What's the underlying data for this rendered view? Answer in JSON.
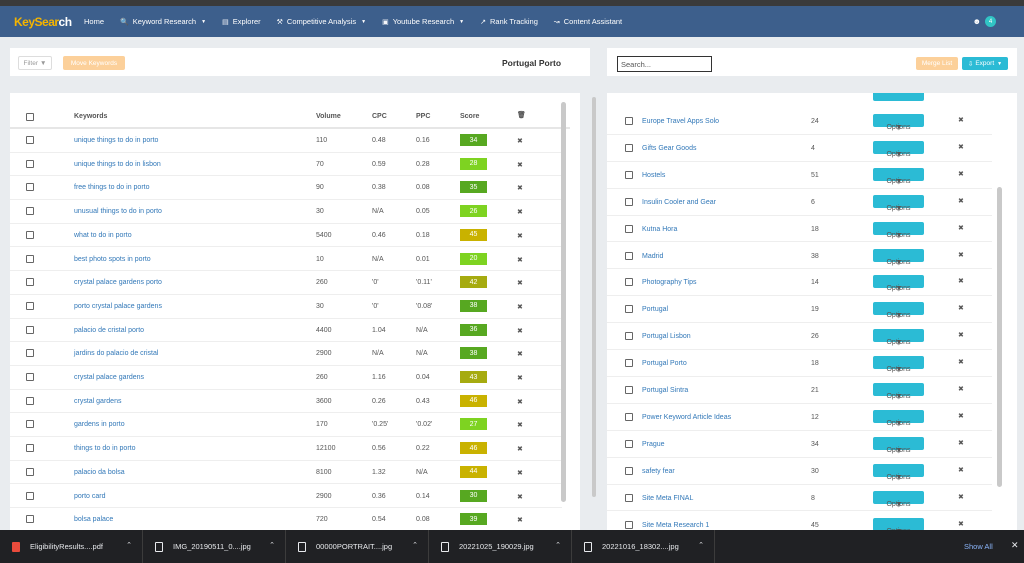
{
  "nav": {
    "logo_a": "KeySear",
    "logo_b": "ch",
    "items": [
      {
        "label": "Home",
        "icon": "",
        "caret": false
      },
      {
        "label": "Keyword Research",
        "icon": "search-icon",
        "caret": true
      },
      {
        "label": "Explorer",
        "icon": "bar-chart-icon",
        "caret": false
      },
      {
        "label": "Competitive Analysis",
        "icon": "wrench-icon",
        "caret": true
      },
      {
        "label": "Youtube Research",
        "icon": "film-icon",
        "caret": true
      },
      {
        "label": "Rank Tracking",
        "icon": "line-chart-icon",
        "caret": false
      },
      {
        "label": "Content Assistant",
        "icon": "area-chart-icon",
        "caret": false
      }
    ],
    "notification_count": "4"
  },
  "left_toolbar": {
    "filter_label": "Filter",
    "move_label": "Move Keywords",
    "list_title": "Portugal Porto"
  },
  "right_toolbar": {
    "search_placeholder": "Search...",
    "merge_label": "Merge List",
    "export_label": "Export"
  },
  "keywords_table": {
    "headers": {
      "keywords": "Keywords",
      "volume": "Volume",
      "cpc": "CPC",
      "ppc": "PPC",
      "score": "Score"
    },
    "rows": [
      {
        "keyword": "unique things to do in porto",
        "volume": "110",
        "cpc": "0.48",
        "ppc": "0.16",
        "score": "34",
        "color": "#57a821"
      },
      {
        "keyword": "unique things to do in lisbon",
        "volume": "70",
        "cpc": "0.59",
        "ppc": "0.28",
        "score": "28",
        "color": "#7ed321"
      },
      {
        "keyword": "free things to do in porto",
        "volume": "90",
        "cpc": "0.38",
        "ppc": "0.08",
        "score": "35",
        "color": "#57a821"
      },
      {
        "keyword": "unusual things to do in porto",
        "volume": "30",
        "cpc": "N/A",
        "ppc": "0.05",
        "score": "26",
        "color": "#7ed321"
      },
      {
        "keyword": "what to do in porto",
        "volume": "5400",
        "cpc": "0.46",
        "ppc": "0.18",
        "score": "45",
        "color": "#c9b200"
      },
      {
        "keyword": "best photo spots in porto",
        "volume": "10",
        "cpc": "N/A",
        "ppc": "0.01",
        "score": "20",
        "color": "#7ed321"
      },
      {
        "keyword": "crystal palace gardens porto",
        "volume": "260",
        "cpc": "'0'",
        "ppc": "'0.11'",
        "score": "42",
        "color": "#a6ab10"
      },
      {
        "keyword": "porto crystal palace gardens",
        "volume": "30",
        "cpc": "'0'",
        "ppc": "'0.08'",
        "score": "38",
        "color": "#57a821"
      },
      {
        "keyword": "palacio de cristal porto",
        "volume": "4400",
        "cpc": "1.04",
        "ppc": "N/A",
        "score": "36",
        "color": "#57a821"
      },
      {
        "keyword": "jardins do palacio de cristal",
        "volume": "2900",
        "cpc": "N/A",
        "ppc": "N/A",
        "score": "38",
        "color": "#57a821"
      },
      {
        "keyword": "crystal palace gardens",
        "volume": "260",
        "cpc": "1.16",
        "ppc": "0.04",
        "score": "43",
        "color": "#a6ab10"
      },
      {
        "keyword": "crystal gardens",
        "volume": "3600",
        "cpc": "0.26",
        "ppc": "0.43",
        "score": "46",
        "color": "#c9b200"
      },
      {
        "keyword": "gardens in porto",
        "volume": "170",
        "cpc": "'0.25'",
        "ppc": "'0.02'",
        "score": "27",
        "color": "#7ed321"
      },
      {
        "keyword": "things to do in porto",
        "volume": "12100",
        "cpc": "0.56",
        "ppc": "0.22",
        "score": "46",
        "color": "#c9b200"
      },
      {
        "keyword": "palacio da bolsa",
        "volume": "8100",
        "cpc": "1.32",
        "ppc": "N/A",
        "score": "44",
        "color": "#c9b200"
      },
      {
        "keyword": "porto card",
        "volume": "2900",
        "cpc": "0.36",
        "ppc": "0.14",
        "score": "30",
        "color": "#57a821"
      },
      {
        "keyword": "bolsa palace",
        "volume": "720",
        "cpc": "0.54",
        "ppc": "0.08",
        "score": "39",
        "color": "#57a821"
      }
    ]
  },
  "lists": {
    "options_label": "Options",
    "rows": [
      {
        "name": "Europe Travel Apps Solo",
        "count": "24"
      },
      {
        "name": "Gifts Gear Goods",
        "count": "4"
      },
      {
        "name": "Hostels",
        "count": "51"
      },
      {
        "name": "Insulin Cooler and Gear",
        "count": "6"
      },
      {
        "name": "Kutna Hora",
        "count": "18"
      },
      {
        "name": "Madrid",
        "count": "38"
      },
      {
        "name": "Photography Tips",
        "count": "14"
      },
      {
        "name": "Portugal",
        "count": "19"
      },
      {
        "name": "Portugal Lisbon",
        "count": "26"
      },
      {
        "name": "Portugal Porto",
        "count": "18"
      },
      {
        "name": "Portugal Sintra",
        "count": "21"
      },
      {
        "name": "Power Keyword Article Ideas",
        "count": "12"
      },
      {
        "name": "Prague",
        "count": "34"
      },
      {
        "name": "safety fear",
        "count": "30"
      },
      {
        "name": "Site Meta FINAL",
        "count": "8"
      },
      {
        "name": "Site Meta Research 1",
        "count": "45"
      }
    ]
  },
  "downloads": {
    "items": [
      {
        "name": "EligibilityResults....pdf",
        "type": "pdf"
      },
      {
        "name": "IMG_20190511_0....jpg",
        "type": "img"
      },
      {
        "name": "00000PORTRAIT....jpg",
        "type": "img"
      },
      {
        "name": "20221025_190029.jpg",
        "type": "img"
      },
      {
        "name": "20221016_18302....jpg",
        "type": "img"
      }
    ],
    "show_all": "Show All"
  }
}
